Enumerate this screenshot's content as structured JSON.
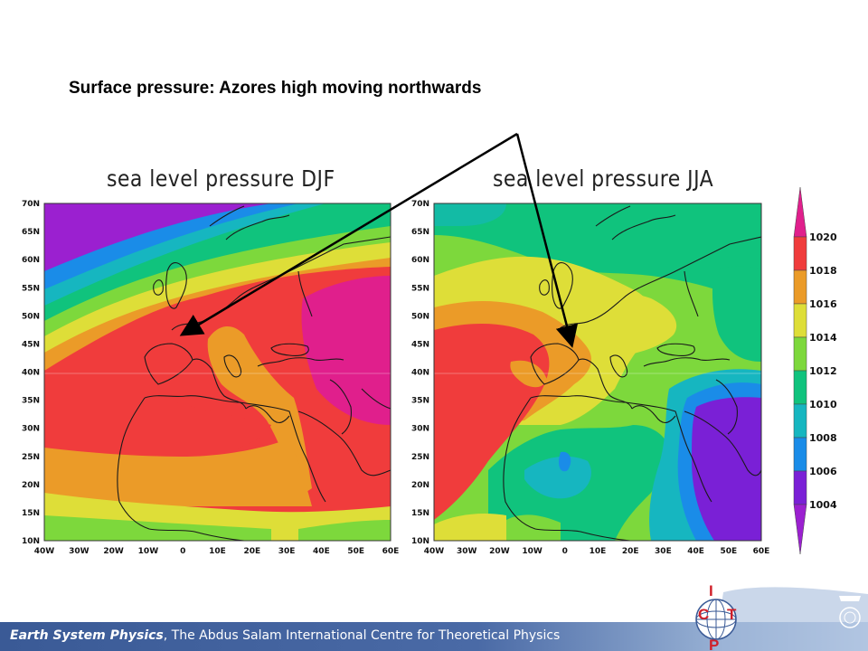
{
  "slide": {
    "title": "Surface pressure: Azores high moving northwards"
  },
  "panels": [
    {
      "title": "sea level pressure DJF"
    },
    {
      "title": "sea level pressure JJA"
    }
  ],
  "map_axes": {
    "latitude_labels": [
      "70N",
      "65N",
      "60N",
      "55N",
      "50N",
      "45N",
      "40N",
      "35N",
      "30N",
      "25N",
      "20N",
      "15N",
      "10N"
    ],
    "longitude_labels": [
      "40W",
      "30W",
      "20W",
      "10W",
      "0",
      "10E",
      "20E",
      "30E",
      "40E",
      "50E",
      "60E"
    ]
  },
  "colorbar": {
    "labels": [
      "1020",
      "1018",
      "1016",
      "1014",
      "1012",
      "1010",
      "1008",
      "1006",
      "1004"
    ],
    "colors": [
      "#e01f8c",
      "#f03c3c",
      "#eb9b28",
      "#dede38",
      "#7dd83c",
      "#10c37d",
      "#16b6c0",
      "#1a8ce8",
      "#7a20d6",
      "#9b20d0"
    ]
  },
  "palette": {
    "magenta": "#e01f8c",
    "red": "#f03c3c",
    "orange": "#eb9b28",
    "yellow": "#dede38",
    "green": "#7dd83c",
    "teal": "#10c37d",
    "cyan": "#16b6c0",
    "blue": "#1a8ce8",
    "purple": "#7a20d6"
  },
  "footer": {
    "italic_part": "Earth System Physics",
    "rest": ", The Abdus Salam International Centre for Theoretical Physics"
  },
  "logo": {
    "text_letters": [
      "I",
      "C",
      "T",
      "P"
    ]
  }
}
